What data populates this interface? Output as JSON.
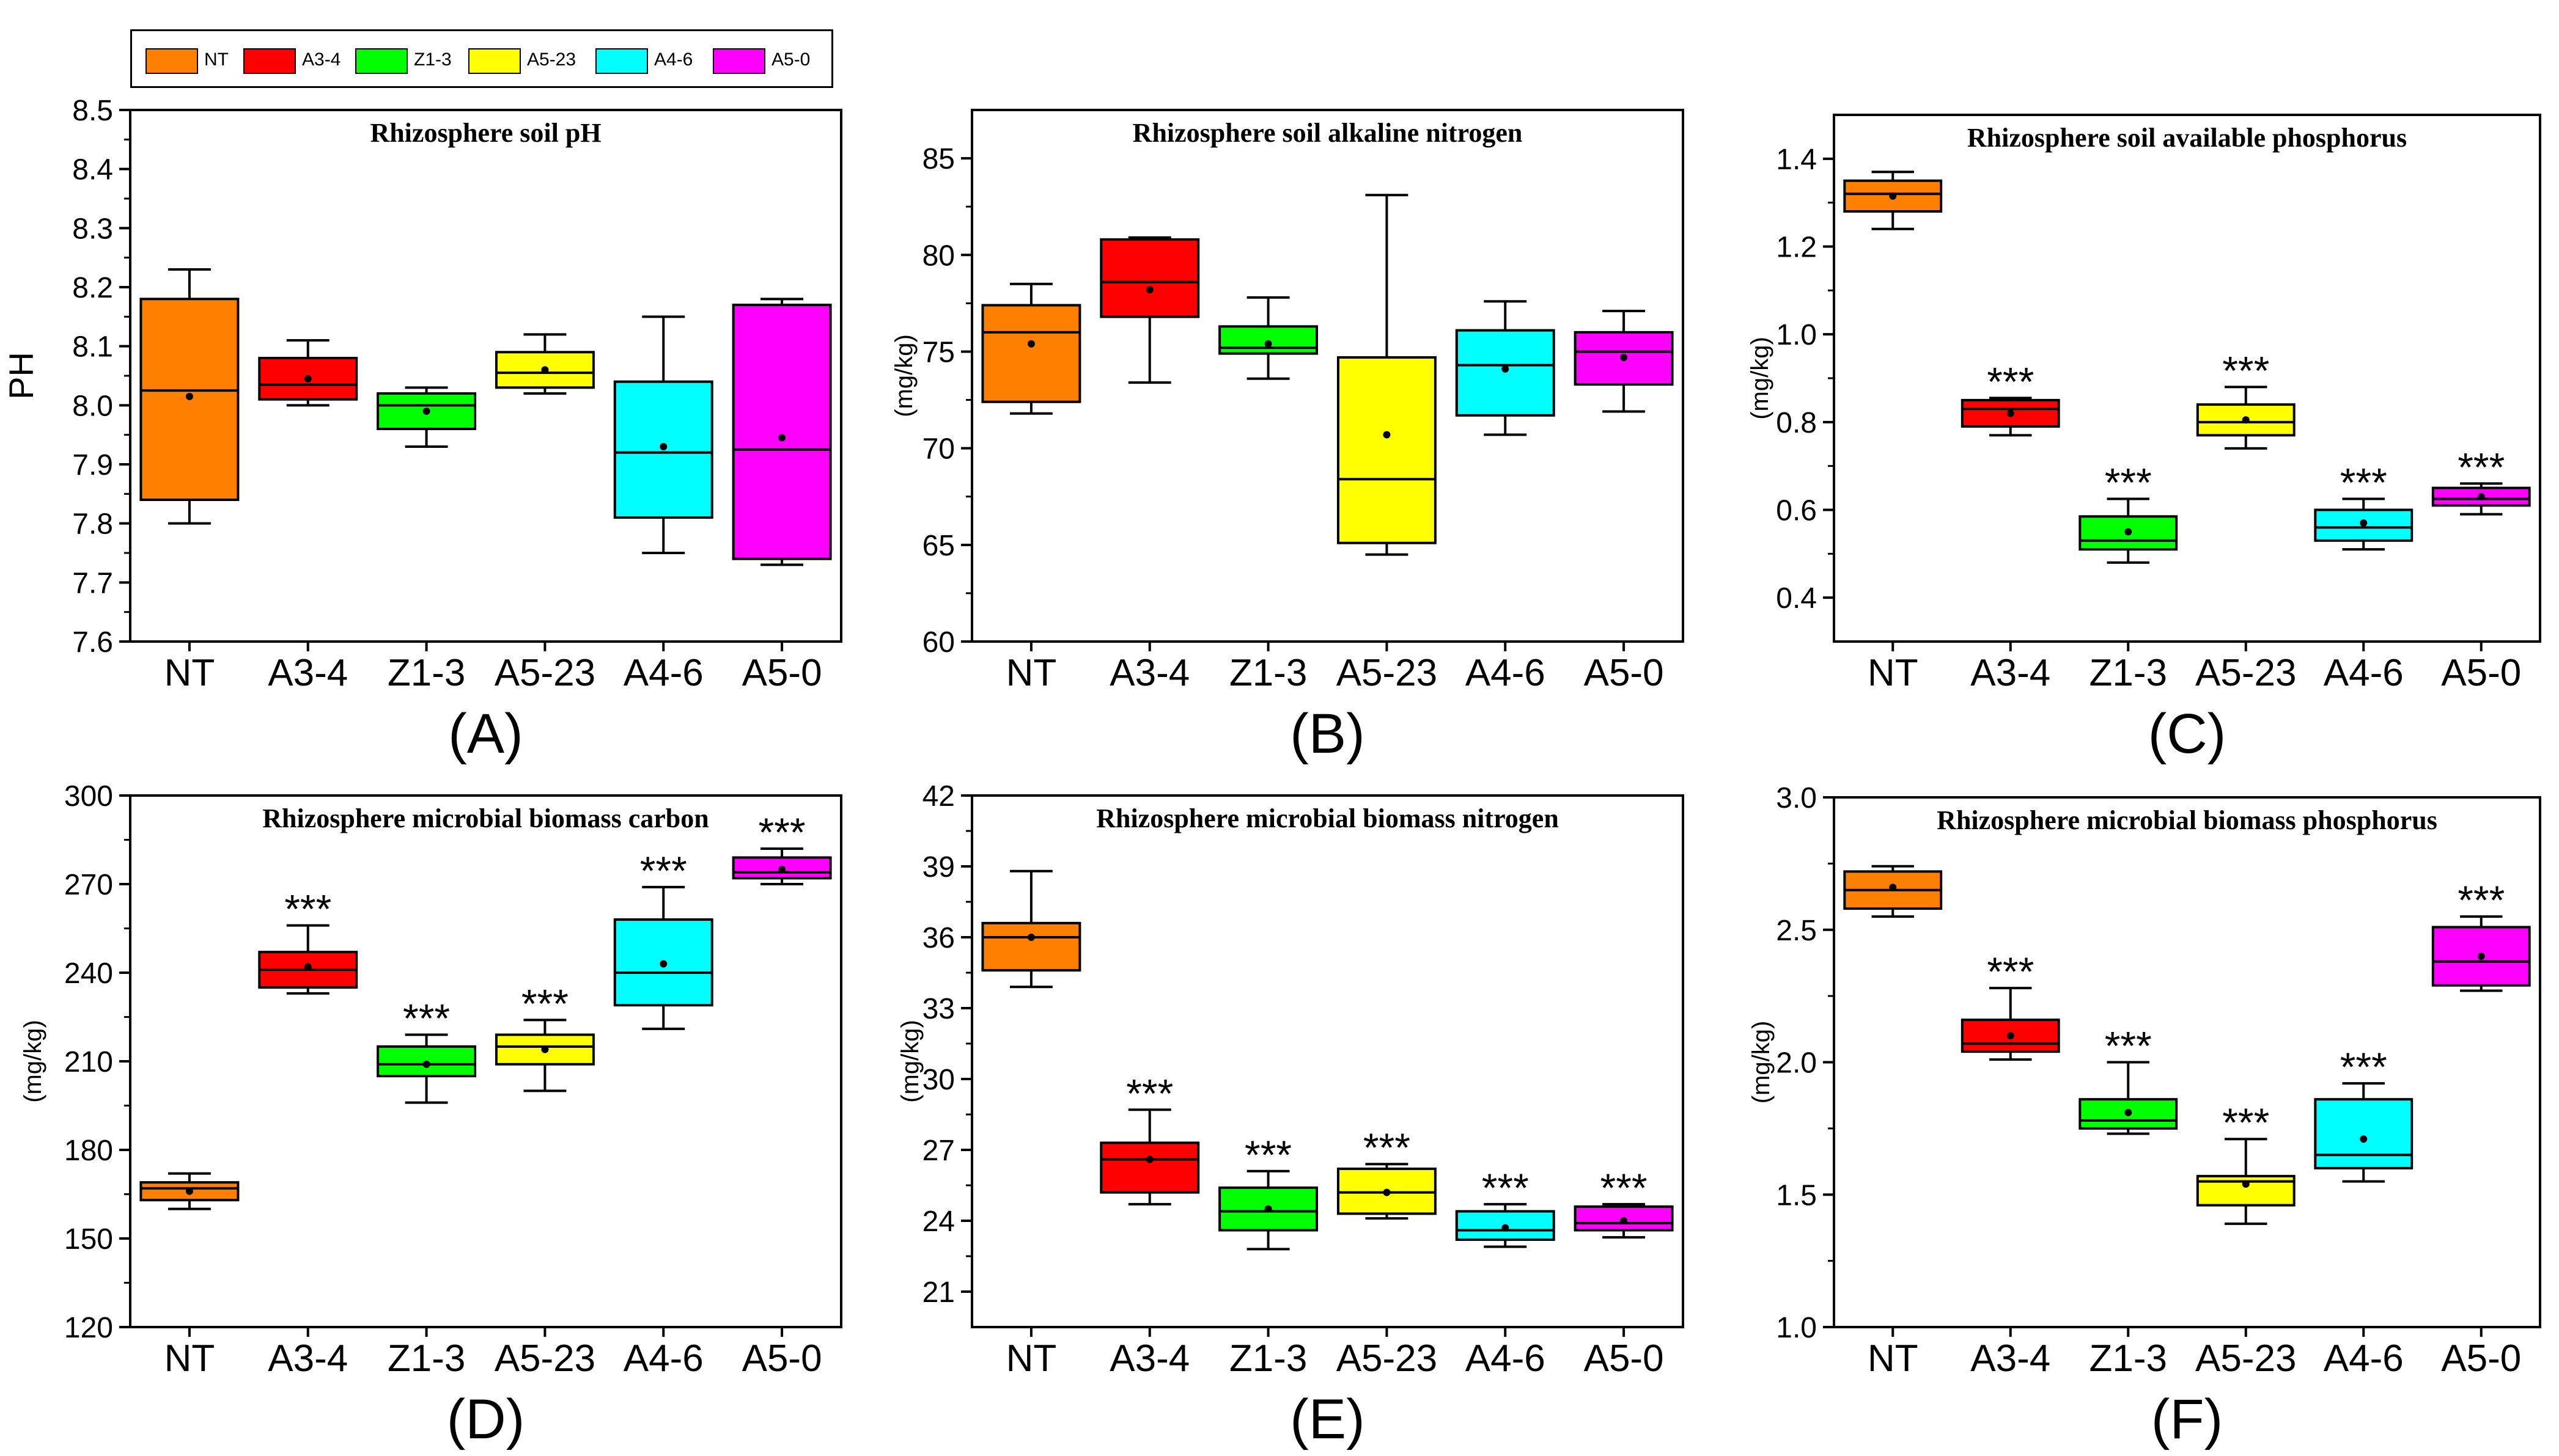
{
  "legend": {
    "items": [
      {
        "label": "NT",
        "color": "#FF8000"
      },
      {
        "label": "A3-4",
        "color": "#FF0000"
      },
      {
        "label": "Z1-3",
        "color": "#00FF00"
      },
      {
        "label": "A5-23",
        "color": "#FFFF00"
      },
      {
        "label": "A4-6",
        "color": "#00FFFF"
      },
      {
        "label": "A5-0",
        "color": "#FF00FF"
      }
    ]
  },
  "chart_data": [
    {
      "type": "box",
      "panel": "(A)",
      "title": "Rhizosphere soil pH",
      "ylabel": "PH",
      "ylim": [
        7.6,
        8.5
      ],
      "yticks": [
        7.6,
        7.7,
        7.8,
        7.9,
        8.0,
        8.1,
        8.2,
        8.3,
        8.4,
        8.5
      ],
      "tickDecimals": 1,
      "categories": [
        "NT",
        "A3-4",
        "Z1-3",
        "A5-23",
        "A4-6",
        "A5-0"
      ],
      "boxes": [
        {
          "whiskerLow": 7.8,
          "q1": 7.84,
          "median": 8.025,
          "q3": 8.18,
          "whiskerHigh": 8.23,
          "mean": 8.015,
          "sig": ""
        },
        {
          "whiskerLow": 8.0,
          "q1": 8.01,
          "median": 8.035,
          "q3": 8.08,
          "whiskerHigh": 8.11,
          "mean": 8.045,
          "sig": ""
        },
        {
          "whiskerLow": 7.93,
          "q1": 7.96,
          "median": 8.0,
          "q3": 8.02,
          "whiskerHigh": 8.03,
          "mean": 7.99,
          "sig": ""
        },
        {
          "whiskerLow": 8.02,
          "q1": 8.03,
          "median": 8.055,
          "q3": 8.09,
          "whiskerHigh": 8.12,
          "mean": 8.06,
          "sig": ""
        },
        {
          "whiskerLow": 7.75,
          "q1": 7.81,
          "median": 7.92,
          "q3": 8.04,
          "whiskerHigh": 8.15,
          "mean": 7.93,
          "sig": ""
        },
        {
          "whiskerLow": 7.73,
          "q1": 7.74,
          "median": 7.925,
          "q3": 8.17,
          "whiskerHigh": 8.18,
          "mean": 7.945,
          "sig": ""
        }
      ]
    },
    {
      "type": "box",
      "panel": "(B)",
      "title": "Rhizosphere soil alkaline nitrogen",
      "ylabel": "(mg/kg)",
      "ylim": [
        60,
        87.5
      ],
      "yticks": [
        60,
        65,
        70,
        75,
        80,
        85
      ],
      "tickDecimals": 0,
      "categories": [
        "NT",
        "A3-4",
        "Z1-3",
        "A5-23",
        "A4-6",
        "A5-0"
      ],
      "boxes": [
        {
          "whiskerLow": 71.8,
          "q1": 72.4,
          "median": 76.0,
          "q3": 77.4,
          "whiskerHigh": 78.5,
          "mean": 75.4,
          "sig": ""
        },
        {
          "whiskerLow": 73.4,
          "q1": 76.8,
          "median": 78.6,
          "q3": 80.8,
          "whiskerHigh": 80.9,
          "mean": 78.2,
          "sig": ""
        },
        {
          "whiskerLow": 73.6,
          "q1": 74.9,
          "median": 75.2,
          "q3": 76.3,
          "whiskerHigh": 77.8,
          "mean": 75.4,
          "sig": ""
        },
        {
          "whiskerLow": 64.5,
          "q1": 65.1,
          "median": 68.4,
          "q3": 74.7,
          "whiskerHigh": 83.1,
          "mean": 70.7,
          "sig": ""
        },
        {
          "whiskerLow": 70.7,
          "q1": 71.7,
          "median": 74.3,
          "q3": 76.1,
          "whiskerHigh": 77.6,
          "mean": 74.1,
          "sig": ""
        },
        {
          "whiskerLow": 71.9,
          "q1": 73.3,
          "median": 75.0,
          "q3": 76.0,
          "whiskerHigh": 77.1,
          "mean": 74.7,
          "sig": ""
        }
      ]
    },
    {
      "type": "box",
      "panel": "(C)",
      "title": "Rhizosphere soil available phosphorus",
      "ylabel": "(mg/kg)",
      "ylim": [
        0.3,
        1.5
      ],
      "yticks": [
        0.4,
        0.6,
        0.8,
        1.0,
        1.2,
        1.4
      ],
      "tickDecimals": 1,
      "categories": [
        "NT",
        "A3-4",
        "Z1-3",
        "A5-23",
        "A4-6",
        "A5-0"
      ],
      "boxes": [
        {
          "whiskerLow": 1.24,
          "q1": 1.28,
          "median": 1.32,
          "q3": 1.35,
          "whiskerHigh": 1.37,
          "mean": 1.315,
          "sig": ""
        },
        {
          "whiskerLow": 0.77,
          "q1": 0.79,
          "median": 0.83,
          "q3": 0.85,
          "whiskerHigh": 0.855,
          "mean": 0.82,
          "sig": "***"
        },
        {
          "whiskerLow": 0.48,
          "q1": 0.51,
          "median": 0.53,
          "q3": 0.585,
          "whiskerHigh": 0.625,
          "mean": 0.55,
          "sig": "***"
        },
        {
          "whiskerLow": 0.74,
          "q1": 0.77,
          "median": 0.8,
          "q3": 0.84,
          "whiskerHigh": 0.88,
          "mean": 0.805,
          "sig": "***"
        },
        {
          "whiskerLow": 0.51,
          "q1": 0.53,
          "median": 0.56,
          "q3": 0.6,
          "whiskerHigh": 0.625,
          "mean": 0.57,
          "sig": "***"
        },
        {
          "whiskerLow": 0.59,
          "q1": 0.61,
          "median": 0.625,
          "q3": 0.65,
          "whiskerHigh": 0.66,
          "mean": 0.63,
          "sig": "***"
        }
      ]
    },
    {
      "type": "box",
      "panel": "(D)",
      "title": "Rhizosphere microbial biomass carbon",
      "ylabel": "(mg/kg)",
      "ylim": [
        120,
        300
      ],
      "yticks": [
        120,
        150,
        180,
        210,
        240,
        270,
        300
      ],
      "tickDecimals": 0,
      "categories": [
        "NT",
        "A3-4",
        "Z1-3",
        "A5-23",
        "A4-6",
        "A5-0"
      ],
      "boxes": [
        {
          "whiskerLow": 160,
          "q1": 163,
          "median": 167,
          "q3": 169,
          "whiskerHigh": 172,
          "mean": 166,
          "sig": ""
        },
        {
          "whiskerLow": 233,
          "q1": 235,
          "median": 241,
          "q3": 247,
          "whiskerHigh": 256,
          "mean": 242,
          "sig": "***"
        },
        {
          "whiskerLow": 196,
          "q1": 205,
          "median": 209,
          "q3": 215,
          "whiskerHigh": 219,
          "mean": 209,
          "sig": "***"
        },
        {
          "whiskerLow": 200,
          "q1": 209,
          "median": 215,
          "q3": 219,
          "whiskerHigh": 224,
          "mean": 214,
          "sig": "***"
        },
        {
          "whiskerLow": 221,
          "q1": 229,
          "median": 240,
          "q3": 258,
          "whiskerHigh": 269,
          "mean": 243,
          "sig": "***"
        },
        {
          "whiskerLow": 270,
          "q1": 272,
          "median": 274,
          "q3": 279,
          "whiskerHigh": 282,
          "mean": 275,
          "sig": "***"
        }
      ]
    },
    {
      "type": "box",
      "panel": "(E)",
      "title": "Rhizosphere microbial biomass nitrogen",
      "ylabel": "(mg/kg)",
      "ylim": [
        19.5,
        42
      ],
      "yticks": [
        21,
        24,
        27,
        30,
        33,
        36,
        39,
        42
      ],
      "tickDecimals": 0,
      "categories": [
        "NT",
        "A3-4",
        "Z1-3",
        "A5-23",
        "A4-6",
        "A5-0"
      ],
      "boxes": [
        {
          "whiskerLow": 33.9,
          "q1": 34.6,
          "median": 36.0,
          "q3": 36.6,
          "whiskerHigh": 38.8,
          "mean": 36.0,
          "sig": ""
        },
        {
          "whiskerLow": 24.7,
          "q1": 25.2,
          "median": 26.6,
          "q3": 27.3,
          "whiskerHigh": 28.7,
          "mean": 26.6,
          "sig": "***"
        },
        {
          "whiskerLow": 22.8,
          "q1": 23.6,
          "median": 24.4,
          "q3": 25.4,
          "whiskerHigh": 26.1,
          "mean": 24.5,
          "sig": "***"
        },
        {
          "whiskerLow": 24.1,
          "q1": 24.3,
          "median": 25.2,
          "q3": 26.2,
          "whiskerHigh": 26.4,
          "mean": 25.2,
          "sig": "***"
        },
        {
          "whiskerLow": 22.9,
          "q1": 23.2,
          "median": 23.6,
          "q3": 24.4,
          "whiskerHigh": 24.7,
          "mean": 23.7,
          "sig": "***"
        },
        {
          "whiskerLow": 23.3,
          "q1": 23.6,
          "median": 23.9,
          "q3": 24.6,
          "whiskerHigh": 24.7,
          "mean": 24.0,
          "sig": "***"
        }
      ]
    },
    {
      "type": "box",
      "panel": "(F)",
      "title": "Rhizosphere microbial biomass phosphorus",
      "ylabel": "(mg/kg)",
      "ylim": [
        1.0,
        3.0
      ],
      "yticks": [
        1.0,
        1.5,
        2.0,
        2.5,
        3.0
      ],
      "tickDecimals": 1,
      "categories": [
        "NT",
        "A3-4",
        "Z1-3",
        "A5-23",
        "A4-6",
        "A5-0"
      ],
      "boxes": [
        {
          "whiskerLow": 2.55,
          "q1": 2.58,
          "median": 2.65,
          "q3": 2.72,
          "whiskerHigh": 2.74,
          "mean": 2.66,
          "sig": ""
        },
        {
          "whiskerLow": 2.01,
          "q1": 2.04,
          "median": 2.07,
          "q3": 2.16,
          "whiskerHigh": 2.28,
          "mean": 2.1,
          "sig": "***"
        },
        {
          "whiskerLow": 1.73,
          "q1": 1.75,
          "median": 1.78,
          "q3": 1.86,
          "whiskerHigh": 2.0,
          "mean": 1.81,
          "sig": "***"
        },
        {
          "whiskerLow": 1.39,
          "q1": 1.46,
          "median": 1.55,
          "q3": 1.57,
          "whiskerHigh": 1.71,
          "mean": 1.54,
          "sig": "***"
        },
        {
          "whiskerLow": 1.55,
          "q1": 1.6,
          "median": 1.65,
          "q3": 1.86,
          "whiskerHigh": 1.92,
          "mean": 1.71,
          "sig": "***"
        },
        {
          "whiskerLow": 2.27,
          "q1": 2.29,
          "median": 2.38,
          "q3": 2.51,
          "whiskerHigh": 2.55,
          "mean": 2.4,
          "sig": "***"
        }
      ]
    }
  ]
}
